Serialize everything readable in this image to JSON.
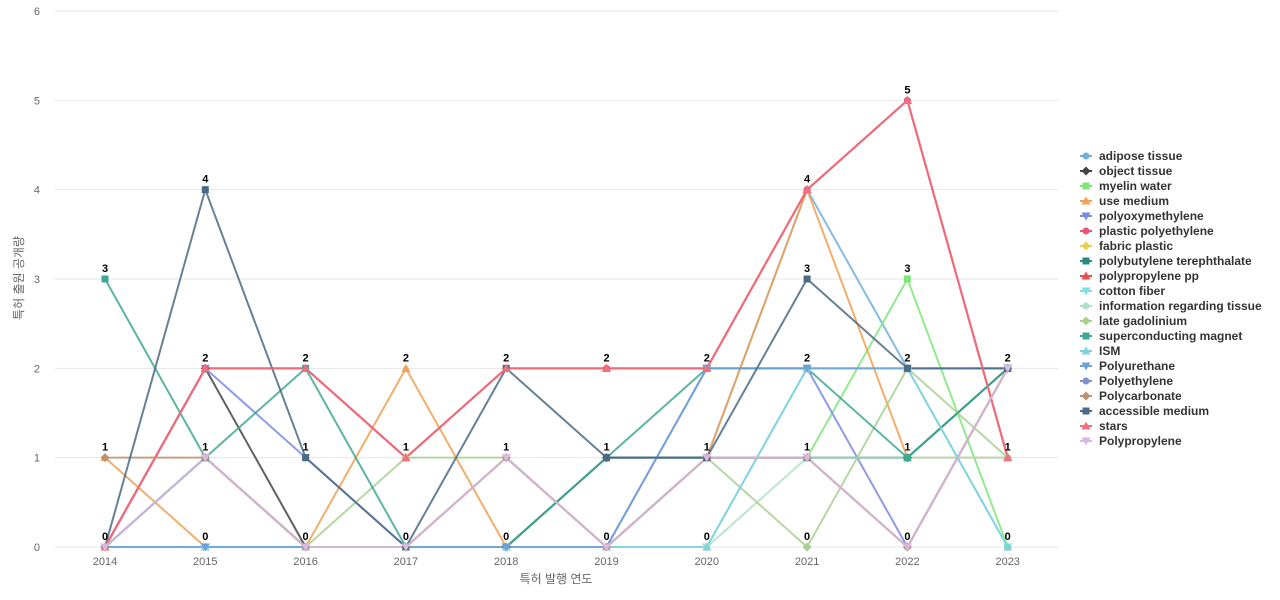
{
  "chart_data": {
    "type": "line",
    "title": "",
    "xlabel": "특허 발행 연도",
    "ylabel": "특허 출원 공개량",
    "ylim": [
      0,
      6
    ],
    "yticks": [
      0,
      1,
      2,
      3,
      4,
      5,
      6
    ],
    "categories": [
      "2014",
      "2015",
      "2016",
      "2017",
      "2018",
      "2019",
      "2020",
      "2021",
      "2022",
      "2023"
    ],
    "grid": true,
    "legend_position": "right",
    "data_labels": [
      {
        "x": "2014",
        "values": [
          "3",
          "1",
          "0"
        ]
      },
      {
        "x": "2015",
        "values": [
          "4",
          "2",
          "1",
          "0"
        ]
      },
      {
        "x": "2016",
        "values": [
          "2",
          "1",
          "0"
        ]
      },
      {
        "x": "2017",
        "values": [
          "2",
          "1",
          "0"
        ]
      },
      {
        "x": "2018",
        "values": [
          "2",
          "1",
          "0"
        ]
      },
      {
        "x": "2019",
        "values": [
          "2",
          "1",
          "0"
        ]
      },
      {
        "x": "2020",
        "values": [
          "2",
          "1",
          "0"
        ]
      },
      {
        "x": "2021",
        "values": [
          "4",
          "3",
          "2",
          "1",
          "0"
        ]
      },
      {
        "x": "2022",
        "values": [
          "5",
          "3",
          "2",
          "1",
          "0"
        ]
      },
      {
        "x": "2023",
        "values": [
          "2",
          "1",
          "0"
        ]
      }
    ],
    "series": [
      {
        "name": "adipose tissue",
        "color": "#6fb0e0",
        "marker": "circle",
        "values": [
          0,
          1,
          0,
          0,
          0,
          0,
          1,
          4,
          2,
          2
        ]
      },
      {
        "name": "object tissue",
        "color": "#444444",
        "marker": "diamond",
        "values": [
          0,
          2,
          0,
          0,
          0,
          1,
          1,
          1,
          1,
          2
        ]
      },
      {
        "name": "myelin water",
        "color": "#7fe67a",
        "marker": "square",
        "values": [
          0,
          1,
          0,
          0,
          0,
          0,
          1,
          1,
          3,
          0
        ]
      },
      {
        "name": "use medium",
        "color": "#f0a050",
        "marker": "triangle",
        "values": [
          1,
          0,
          0,
          2,
          0,
          0,
          1,
          4,
          1,
          1
        ]
      },
      {
        "name": "polyoxymethylene",
        "color": "#7c8ae0",
        "marker": "triangle-down",
        "values": [
          0,
          2,
          1,
          0,
          0,
          0,
          2,
          2,
          0,
          2
        ]
      },
      {
        "name": "plastic polyethylene",
        "color": "#e8557a",
        "marker": "circle",
        "values": [
          0,
          2,
          2,
          1,
          2,
          2,
          2,
          4,
          5,
          1
        ]
      },
      {
        "name": "fabric plastic",
        "color": "#e8d050",
        "marker": "diamond",
        "values": [
          0,
          1,
          0,
          0,
          1,
          0,
          1,
          1,
          0,
          2
        ]
      },
      {
        "name": "polybutylene terephthalate",
        "color": "#2a8a80",
        "marker": "square",
        "values": [
          0,
          1,
          0,
          0,
          0,
          1,
          1,
          1,
          1,
          2
        ]
      },
      {
        "name": "polypropylene pp",
        "color": "#e85050",
        "marker": "triangle",
        "values": [
          0,
          2,
          2,
          1,
          2,
          2,
          2,
          4,
          5,
          1
        ]
      },
      {
        "name": "cotton fiber",
        "color": "#80e0e0",
        "marker": "triangle-down",
        "values": [
          0,
          0,
          0,
          0,
          0,
          0,
          0,
          2,
          2,
          0
        ]
      },
      {
        "name": "information regarding tissue",
        "color": "#b0e0c8",
        "marker": "circle",
        "values": [
          0,
          1,
          0,
          0,
          1,
          0,
          0,
          1,
          1,
          1
        ]
      },
      {
        "name": "late gadolinium",
        "color": "#a8d090",
        "marker": "diamond",
        "values": [
          0,
          1,
          0,
          1,
          1,
          0,
          1,
          0,
          2,
          1
        ]
      },
      {
        "name": "superconducting magnet",
        "color": "#40a890",
        "marker": "square",
        "values": [
          3,
          1,
          2,
          0,
          0,
          1,
          2,
          2,
          1,
          2
        ]
      },
      {
        "name": "ISM",
        "color": "#80d0e0",
        "marker": "triangle",
        "values": [
          0,
          0,
          0,
          0,
          0,
          0,
          0,
          2,
          2,
          0
        ]
      },
      {
        "name": "Polyurethane",
        "color": "#70a0d8",
        "marker": "triangle-down",
        "values": [
          0,
          0,
          0,
          0,
          0,
          0,
          2,
          2,
          2,
          2
        ]
      },
      {
        "name": "Polyethylene",
        "color": "#8090d0",
        "marker": "circle",
        "values": [
          0,
          1,
          0,
          0,
          1,
          0,
          1,
          1,
          0,
          2
        ]
      },
      {
        "name": "Polycarbonate",
        "color": "#c09070",
        "marker": "diamond",
        "values": [
          1,
          1,
          0,
          0,
          1,
          0,
          1,
          1,
          0,
          2
        ]
      },
      {
        "name": "accessible medium",
        "color": "#4a6a85",
        "marker": "square",
        "values": [
          0,
          4,
          1,
          0,
          2,
          1,
          1,
          3,
          2,
          2
        ]
      },
      {
        "name": "stars",
        "color": "#f07080",
        "marker": "triangle",
        "values": [
          0,
          2,
          2,
          1,
          2,
          2,
          2,
          4,
          5,
          1
        ]
      },
      {
        "name": "Polypropylene",
        "color": "#d8b8e0",
        "marker": "triangle-down",
        "values": [
          0,
          1,
          0,
          0,
          1,
          0,
          1,
          1,
          0,
          2
        ]
      }
    ]
  }
}
